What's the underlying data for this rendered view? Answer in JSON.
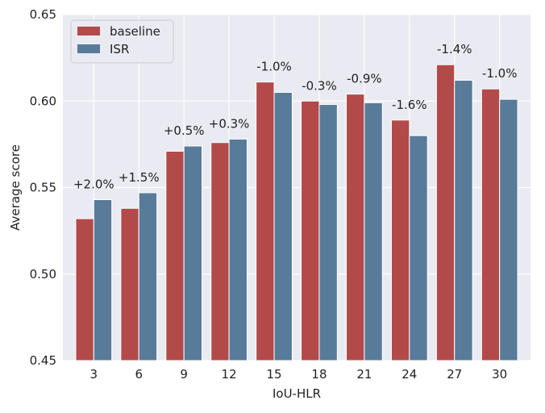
{
  "chart_data": {
    "type": "bar",
    "title": "",
    "xlabel": "IoU-HLR",
    "ylabel": "Average score",
    "categories": [
      "3",
      "6",
      "9",
      "12",
      "15",
      "18",
      "21",
      "24",
      "27",
      "30"
    ],
    "series": [
      {
        "name": "baseline",
        "color": "#b34a4a",
        "values": [
          0.532,
          0.538,
          0.571,
          0.576,
          0.611,
          0.6,
          0.604,
          0.589,
          0.621,
          0.607
        ]
      },
      {
        "name": "ISR",
        "color": "#587b9a",
        "values": [
          0.543,
          0.547,
          0.574,
          0.578,
          0.605,
          0.598,
          0.599,
          0.58,
          0.612,
          0.601
        ]
      }
    ],
    "annotations": [
      "+2.0%",
      "+1.5%",
      "+0.5%",
      "+0.3%",
      "-1.0%",
      "-0.3%",
      "-0.9%",
      "-1.6%",
      "-1.4%",
      "-1.0%"
    ],
    "ylim": [
      0.45,
      0.65
    ],
    "yticks": [
      "0.45",
      "0.50",
      "0.55",
      "0.60",
      "0.65"
    ],
    "grid": true,
    "legend_position": "top-left",
    "background_color": "#eaeaf2",
    "grid_color": "#ffffff"
  }
}
